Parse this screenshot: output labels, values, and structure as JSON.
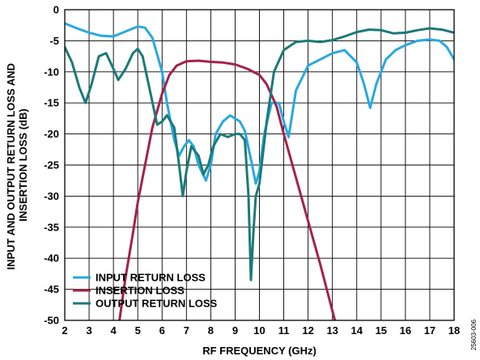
{
  "chart_data": {
    "type": "line",
    "xlabel": "RF FREQUENCY (GHz)",
    "ylabel_lines": [
      "INPUT AND OUTPUT RETURN LOSS AND",
      "INSERTION LOSS (dB)"
    ],
    "xlim": [
      2,
      18
    ],
    "ylim": [
      -50,
      0
    ],
    "x_ticks": [
      2,
      3,
      4,
      5,
      6,
      7,
      8,
      9,
      10,
      11,
      12,
      13,
      14,
      15,
      16,
      17,
      18
    ],
    "y_ticks": [
      0,
      -5,
      -10,
      -15,
      -20,
      -25,
      -30,
      -35,
      -40,
      -45,
      -50
    ],
    "grid": true,
    "legend_position": "bottom-left",
    "figure_code": "25603-006",
    "series": [
      {
        "name": "INPUT RETURN LOSS",
        "color": "#29a8e0",
        "points": [
          [
            2.0,
            -2.2
          ],
          [
            2.5,
            -3.0
          ],
          [
            3.0,
            -3.7
          ],
          [
            3.5,
            -4.2
          ],
          [
            4.0,
            -4.3
          ],
          [
            4.5,
            -3.5
          ],
          [
            5.0,
            -2.7
          ],
          [
            5.3,
            -2.9
          ],
          [
            5.6,
            -4.5
          ],
          [
            6.0,
            -10.0
          ],
          [
            6.2,
            -15.0
          ],
          [
            6.5,
            -21.0
          ],
          [
            6.7,
            -23.5
          ],
          [
            6.9,
            -22.0
          ],
          [
            7.1,
            -21.0
          ],
          [
            7.3,
            -22.0
          ],
          [
            7.5,
            -25.0
          ],
          [
            7.8,
            -27.5
          ],
          [
            8.0,
            -25.0
          ],
          [
            8.2,
            -20.0
          ],
          [
            8.5,
            -18.0
          ],
          [
            8.8,
            -17.0
          ],
          [
            9.2,
            -18.0
          ],
          [
            9.4,
            -19.5
          ],
          [
            9.7,
            -25.0
          ],
          [
            9.85,
            -28.0
          ],
          [
            10.0,
            -26.0
          ],
          [
            10.2,
            -20.0
          ],
          [
            10.5,
            -15.0
          ],
          [
            10.8,
            -15.0
          ],
          [
            11.0,
            -18.0
          ],
          [
            11.2,
            -20.5
          ],
          [
            11.5,
            -13.0
          ],
          [
            12.0,
            -9.0
          ],
          [
            12.5,
            -8.0
          ],
          [
            13.0,
            -7.0
          ],
          [
            13.5,
            -6.5
          ],
          [
            14.0,
            -8.5
          ],
          [
            14.3,
            -12.0
          ],
          [
            14.55,
            -15.8
          ],
          [
            14.8,
            -12.0
          ],
          [
            15.2,
            -8.0
          ],
          [
            15.6,
            -6.5
          ],
          [
            16.0,
            -5.7
          ],
          [
            16.5,
            -5.0
          ],
          [
            17.0,
            -4.8
          ],
          [
            17.4,
            -5.0
          ],
          [
            17.7,
            -6.0
          ],
          [
            18.0,
            -8.0
          ]
        ]
      },
      {
        "name": "INSERTION LOSS",
        "color": "#a3224a",
        "points": [
          [
            4.25,
            -50.0
          ],
          [
            4.5,
            -43.0
          ],
          [
            4.8,
            -36.0
          ],
          [
            5.0,
            -31.0
          ],
          [
            5.3,
            -25.0
          ],
          [
            5.6,
            -19.0
          ],
          [
            6.0,
            -13.5
          ],
          [
            6.3,
            -10.5
          ],
          [
            6.6,
            -9.0
          ],
          [
            7.0,
            -8.3
          ],
          [
            7.5,
            -8.2
          ],
          [
            8.0,
            -8.4
          ],
          [
            8.5,
            -8.5
          ],
          [
            9.0,
            -8.8
          ],
          [
            9.5,
            -9.5
          ],
          [
            10.0,
            -10.5
          ],
          [
            10.3,
            -12.0
          ],
          [
            10.7,
            -15.5
          ],
          [
            11.0,
            -20.0
          ],
          [
            11.5,
            -27.0
          ],
          [
            12.0,
            -34.0
          ],
          [
            12.5,
            -41.0
          ],
          [
            12.9,
            -47.0
          ],
          [
            13.1,
            -50.0
          ]
        ]
      },
      {
        "name": "OUTPUT RETURN LOSS",
        "color": "#1b7a78",
        "points": [
          [
            2.0,
            -6.0
          ],
          [
            2.3,
            -8.5
          ],
          [
            2.6,
            -12.5
          ],
          [
            2.85,
            -15.0
          ],
          [
            3.1,
            -12.0
          ],
          [
            3.4,
            -7.5
          ],
          [
            3.7,
            -7.0
          ],
          [
            4.0,
            -9.5
          ],
          [
            4.2,
            -11.3
          ],
          [
            4.5,
            -9.5
          ],
          [
            4.8,
            -7.0
          ],
          [
            5.0,
            -6.3
          ],
          [
            5.2,
            -7.5
          ],
          [
            5.5,
            -13.0
          ],
          [
            5.8,
            -18.5
          ],
          [
            6.0,
            -18.0
          ],
          [
            6.2,
            -17.0
          ],
          [
            6.5,
            -19.0
          ],
          [
            6.7,
            -25.0
          ],
          [
            6.85,
            -30.0
          ],
          [
            7.0,
            -26.0
          ],
          [
            7.2,
            -22.0
          ],
          [
            7.5,
            -23.5
          ],
          [
            7.7,
            -26.5
          ],
          [
            7.9,
            -25.0
          ],
          [
            8.1,
            -22.0
          ],
          [
            8.4,
            -20.0
          ],
          [
            8.7,
            -20.5
          ],
          [
            9.0,
            -20.0
          ],
          [
            9.2,
            -20.0
          ],
          [
            9.4,
            -21.0
          ],
          [
            9.55,
            -30.0
          ],
          [
            9.65,
            -43.5
          ],
          [
            9.75,
            -36.0
          ],
          [
            9.85,
            -30.0
          ],
          [
            10.0,
            -28.0
          ],
          [
            10.3,
            -18.0
          ],
          [
            10.6,
            -10.0
          ],
          [
            11.0,
            -6.5
          ],
          [
            11.5,
            -5.2
          ],
          [
            12.0,
            -5.0
          ],
          [
            12.5,
            -5.2
          ],
          [
            13.0,
            -4.9
          ],
          [
            13.5,
            -4.3
          ],
          [
            14.0,
            -3.6
          ],
          [
            14.5,
            -3.2
          ],
          [
            15.0,
            -3.3
          ],
          [
            15.5,
            -3.8
          ],
          [
            16.0,
            -3.7
          ],
          [
            16.5,
            -3.3
          ],
          [
            17.0,
            -3.0
          ],
          [
            17.5,
            -3.2
          ],
          [
            18.0,
            -3.7
          ]
        ]
      }
    ]
  }
}
